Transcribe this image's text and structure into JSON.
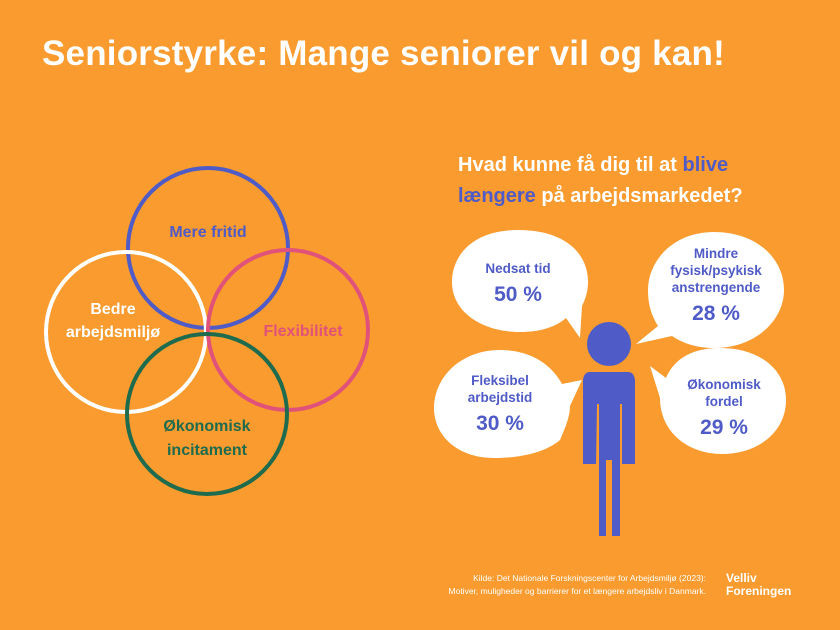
{
  "title": "Seniorstyrke: Mange seniorer vil og kan!",
  "venn": {
    "top": "Mere fritid",
    "left_line1": "Bedre",
    "left_line2": "arbejdsmiljø",
    "right": "Flexibilitet",
    "bottom_line1": "Økonomisk",
    "bottom_line2": "incitament",
    "colors": {
      "top": "#4F5BC6",
      "left": "#FFFFFF",
      "right": "#E0527A",
      "bottom": "#1E6B4E"
    }
  },
  "question": {
    "part1": "Hvad kunne få dig til at ",
    "highlight1": "blive",
    "highlight2": "længere",
    "part2": " på arbejdsmarkedet?"
  },
  "bubbles": [
    {
      "line1": "Nedsat tid",
      "line2": "",
      "line3": "",
      "value": "50 %"
    },
    {
      "line1": "Mindre",
      "line2": "fysisk/psykisk",
      "line3": "anstrengende",
      "value": "28 %"
    },
    {
      "line1": "Fleksibel",
      "line2": "arbejdstid",
      "line3": "",
      "value": "30 %"
    },
    {
      "line1": "Økonomisk",
      "line2": "fordel",
      "line3": "",
      "value": "29 %"
    }
  ],
  "source": {
    "line1": "Kilde: Det Nationale Forskningscenter for Arbejdsmiljø (2023):",
    "line2": "Motiver, muligheder og barrierer for et længere arbejdsliv i Danmark."
  },
  "logo": {
    "line1": "Velliv",
    "line2": "Foreningen"
  },
  "accent_color": "#4F5BC6",
  "background_color": "#F99B2E"
}
